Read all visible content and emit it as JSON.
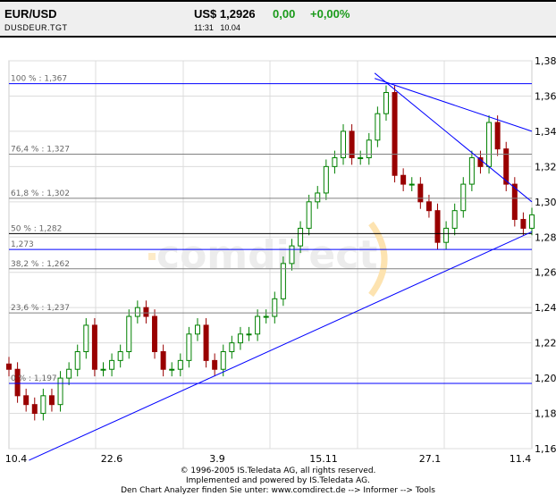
{
  "header": {
    "title": "EUR/USD",
    "symbol": "DUSDEUR.TGT",
    "price": "US$ 1,2926",
    "change": "0,00",
    "change_pct": "+0,00%",
    "time": "11:31",
    "date": "10.04"
  },
  "footer": {
    "line1": "© 1996-2005 IS.Teledata AG, all rights reserved.",
    "line2": "Implemented and powered by IS.Teledata AG.",
    "line3": "Den Chart Analyzer finden Sie unter: www.comdirect.de --> Informer --> Tools"
  },
  "watermark": "comdirect",
  "chart_data": {
    "type": "candlestick",
    "title": "",
    "xlabel": "",
    "ylabel": "",
    "ylim": [
      1.16,
      1.38
    ],
    "yticks": [
      "1,38",
      "1,36",
      "1,34",
      "1,32",
      "1,30",
      "1,28",
      "1,26",
      "1,24",
      "1,22",
      "1,20",
      "1,18",
      "1,16"
    ],
    "xlim": [
      "2004-04-10",
      "2005-04-11"
    ],
    "xticks": [
      "10.4",
      "22.6",
      "3.9",
      "15.11",
      "27.1",
      "11.4"
    ],
    "grid": true,
    "colors": {
      "up": "#008000",
      "down": "#990000",
      "trend": "#0000ff",
      "fib": "#808080"
    },
    "series": [
      [
        "2004-04-10",
        1.205
      ],
      [
        "2004-04-16",
        1.19
      ],
      [
        "2004-04-22",
        1.185
      ],
      [
        "2004-04-28",
        1.18
      ],
      [
        "2004-05-04",
        1.19
      ],
      [
        "2004-05-10",
        1.185
      ],
      [
        "2004-05-16",
        1.2
      ],
      [
        "2004-05-22",
        1.205
      ],
      [
        "2004-05-28",
        1.215
      ],
      [
        "2004-06-03",
        1.23
      ],
      [
        "2004-06-09",
        1.205
      ],
      [
        "2004-06-15",
        1.205
      ],
      [
        "2004-06-21",
        1.21
      ],
      [
        "2004-06-27",
        1.215
      ],
      [
        "2004-07-03",
        1.235
      ],
      [
        "2004-07-09",
        1.24
      ],
      [
        "2004-07-15",
        1.235
      ],
      [
        "2004-07-21",
        1.215
      ],
      [
        "2004-07-27",
        1.205
      ],
      [
        "2004-08-02",
        1.205
      ],
      [
        "2004-08-08",
        1.21
      ],
      [
        "2004-08-14",
        1.225
      ],
      [
        "2004-08-20",
        1.23
      ],
      [
        "2004-08-26",
        1.21
      ],
      [
        "2004-09-01",
        1.205
      ],
      [
        "2004-09-07",
        1.215
      ],
      [
        "2004-09-13",
        1.22
      ],
      [
        "2004-09-19",
        1.225
      ],
      [
        "2004-09-25",
        1.225
      ],
      [
        "2004-10-01",
        1.235
      ],
      [
        "2004-10-07",
        1.235
      ],
      [
        "2004-10-13",
        1.245
      ],
      [
        "2004-10-19",
        1.265
      ],
      [
        "2004-10-25",
        1.275
      ],
      [
        "2004-10-31",
        1.285
      ],
      [
        "2004-11-06",
        1.3
      ],
      [
        "2004-11-12",
        1.305
      ],
      [
        "2004-11-18",
        1.32
      ],
      [
        "2004-11-24",
        1.325
      ],
      [
        "2004-11-30",
        1.34
      ],
      [
        "2004-12-06",
        1.325
      ],
      [
        "2004-12-12",
        1.325
      ],
      [
        "2004-12-18",
        1.335
      ],
      [
        "2004-12-24",
        1.35
      ],
      [
        "2004-12-30",
        1.362
      ],
      [
        "2005-01-05",
        1.315
      ],
      [
        "2005-01-11",
        1.31
      ],
      [
        "2005-01-17",
        1.31
      ],
      [
        "2005-01-23",
        1.3
      ],
      [
        "2005-01-29",
        1.295
      ],
      [
        "2005-02-04",
        1.277
      ],
      [
        "2005-02-10",
        1.285
      ],
      [
        "2005-02-16",
        1.295
      ],
      [
        "2005-02-22",
        1.31
      ],
      [
        "2005-02-28",
        1.325
      ],
      [
        "2005-03-06",
        1.32
      ],
      [
        "2005-03-12",
        1.345
      ],
      [
        "2005-03-18",
        1.33
      ],
      [
        "2005-03-24",
        1.31
      ],
      [
        "2005-03-30",
        1.29
      ],
      [
        "2005-04-05",
        1.285
      ],
      [
        "2005-04-11",
        1.2926
      ]
    ],
    "levels": [
      {
        "label": "100 % : 1,367",
        "value": 1.367,
        "kind": "trend"
      },
      {
        "label": "76,4 % : 1,327",
        "value": 1.327,
        "kind": "fib"
      },
      {
        "label": "61,8 % : 1,302",
        "value": 1.302,
        "kind": "fib"
      },
      {
        "label": "50 % : 1,282",
        "value": 1.282,
        "kind": "mid"
      },
      {
        "label": "1,273",
        "value": 1.273,
        "kind": "trend"
      },
      {
        "label": "38,2 % : 1,262",
        "value": 1.262,
        "kind": "fib"
      },
      {
        "label": "23,6 % : 1,237",
        "value": 1.237,
        "kind": "fib"
      },
      {
        "label": "0 % : 1,197",
        "value": 1.197,
        "kind": "trend"
      }
    ],
    "trendlines": [
      {
        "from": [
          "2004-04-24",
          1.1534
        ],
        "to": [
          "2005-04-11",
          1.283
        ]
      },
      {
        "from": [
          "2004-12-22",
          1.373
        ],
        "to": [
          "2005-04-11",
          1.3
        ]
      },
      {
        "from": [
          "2004-12-22",
          1.37
        ],
        "to": [
          "2005-04-11",
          1.34
        ]
      }
    ]
  }
}
